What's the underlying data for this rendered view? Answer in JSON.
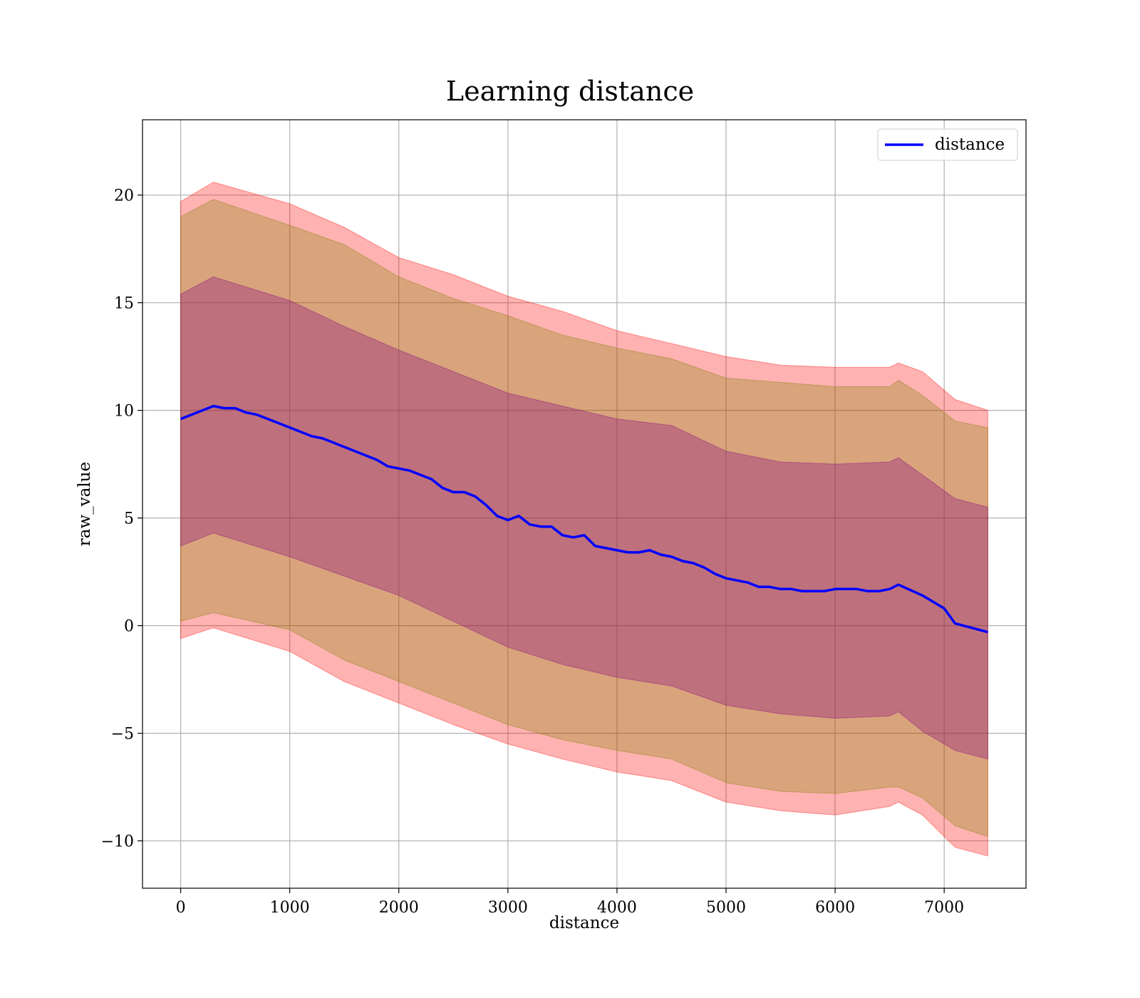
{
  "chart_data": {
    "type": "line",
    "title": "Learning distance",
    "xlabel": "distance",
    "ylabel": "raw_value",
    "xlim": [
      -350,
      7750
    ],
    "ylim": [
      -12.2,
      23.5
    ],
    "xticks": [
      0,
      1000,
      2000,
      3000,
      4000,
      5000,
      6000,
      7000
    ],
    "xtick_labels": [
      "0",
      "1000",
      "2000",
      "3000",
      "4000",
      "5000",
      "6000",
      "7000"
    ],
    "yticks": [
      -10,
      -5,
      0,
      5,
      10,
      15,
      20
    ],
    "ytick_labels": [
      "−10",
      "−5",
      "0",
      "5",
      "10",
      "15",
      "20"
    ],
    "grid": true,
    "legend_position": "top-right",
    "series": [
      {
        "name": "distance",
        "color": "#0000ff",
        "x": [
          0,
          100,
          200,
          300,
          400,
          500,
          600,
          700,
          800,
          900,
          1000,
          1100,
          1200,
          1300,
          1400,
          1500,
          1600,
          1700,
          1800,
          1900,
          2000,
          2100,
          2200,
          2300,
          2400,
          2500,
          2600,
          2700,
          2800,
          2900,
          3000,
          3100,
          3200,
          3300,
          3400,
          3500,
          3600,
          3700,
          3800,
          3900,
          4000,
          4100,
          4200,
          4300,
          4400,
          4500,
          4600,
          4700,
          4800,
          4900,
          5000,
          5100,
          5200,
          5300,
          5400,
          5500,
          5600,
          5700,
          5800,
          5900,
          6000,
          6100,
          6200,
          6300,
          6400,
          6500,
          6580,
          6800,
          7000,
          7100,
          7400
        ],
        "y": [
          9.6,
          9.8,
          10.0,
          10.2,
          10.1,
          10.1,
          9.9,
          9.8,
          9.6,
          9.4,
          9.2,
          9.0,
          8.8,
          8.7,
          8.5,
          8.3,
          8.1,
          7.9,
          7.7,
          7.4,
          7.3,
          7.2,
          7.0,
          6.8,
          6.4,
          6.2,
          6.2,
          6.0,
          5.6,
          5.1,
          4.9,
          5.1,
          4.7,
          4.6,
          4.6,
          4.2,
          4.1,
          4.2,
          3.7,
          3.6,
          3.5,
          3.4,
          3.4,
          3.5,
          3.3,
          3.2,
          3.0,
          2.9,
          2.7,
          2.4,
          2.2,
          2.1,
          2.0,
          1.8,
          1.8,
          1.7,
          1.7,
          1.6,
          1.6,
          1.6,
          1.7,
          1.7,
          1.7,
          1.6,
          1.6,
          1.7,
          1.9,
          1.4,
          0.8,
          0.1,
          -0.3
        ]
      }
    ],
    "bands": [
      {
        "color": "#ff0000",
        "opacity": 0.3,
        "x": [
          0,
          300,
          1000,
          1500,
          2000,
          2500,
          3000,
          3500,
          4000,
          4500,
          5000,
          5500,
          6000,
          6500,
          6580,
          6800,
          7100,
          7400
        ],
        "upper": [
          19.7,
          20.6,
          19.6,
          18.5,
          17.1,
          16.3,
          15.3,
          14.6,
          13.7,
          13.1,
          12.5,
          12.1,
          12.0,
          12.0,
          12.2,
          11.8,
          10.5,
          10.0
        ],
        "lower": [
          -0.6,
          -0.1,
          -1.2,
          -2.6,
          -3.6,
          -4.6,
          -5.5,
          -6.2,
          -6.8,
          -7.2,
          -8.2,
          -8.6,
          -8.8,
          -8.4,
          -8.2,
          -8.8,
          -10.3,
          -10.7
        ]
      },
      {
        "color": "#808000",
        "opacity": 0.3,
        "x": [
          0,
          300,
          1000,
          1500,
          2000,
          2500,
          3000,
          3500,
          4000,
          4500,
          5000,
          5500,
          6000,
          6500,
          6580,
          6800,
          7100,
          7400
        ],
        "upper": [
          19.0,
          19.8,
          18.6,
          17.7,
          16.2,
          15.2,
          14.4,
          13.5,
          12.9,
          12.4,
          11.5,
          11.3,
          11.1,
          11.1,
          11.4,
          10.7,
          9.5,
          9.2
        ],
        "lower": [
          0.2,
          0.6,
          -0.2,
          -1.6,
          -2.6,
          -3.6,
          -4.6,
          -5.3,
          -5.8,
          -6.2,
          -7.3,
          -7.7,
          -7.8,
          -7.5,
          -7.5,
          -8.0,
          -9.3,
          -9.8
        ]
      },
      {
        "color": "#800080",
        "opacity": 0.3,
        "x": [
          0,
          300,
          1000,
          1500,
          2000,
          2500,
          3000,
          3500,
          4000,
          4500,
          5000,
          5500,
          6000,
          6500,
          6580,
          6800,
          7100,
          7400
        ],
        "upper": [
          15.4,
          16.2,
          15.1,
          13.9,
          12.8,
          11.8,
          10.8,
          10.2,
          9.6,
          9.3,
          8.1,
          7.6,
          7.5,
          7.6,
          7.8,
          7.0,
          5.9,
          5.5
        ],
        "lower": [
          3.7,
          4.3,
          3.2,
          2.3,
          1.4,
          0.2,
          -1.0,
          -1.8,
          -2.4,
          -2.8,
          -3.7,
          -4.1,
          -4.3,
          -4.2,
          -4.0,
          -4.9,
          -5.8,
          -6.2
        ]
      }
    ]
  }
}
